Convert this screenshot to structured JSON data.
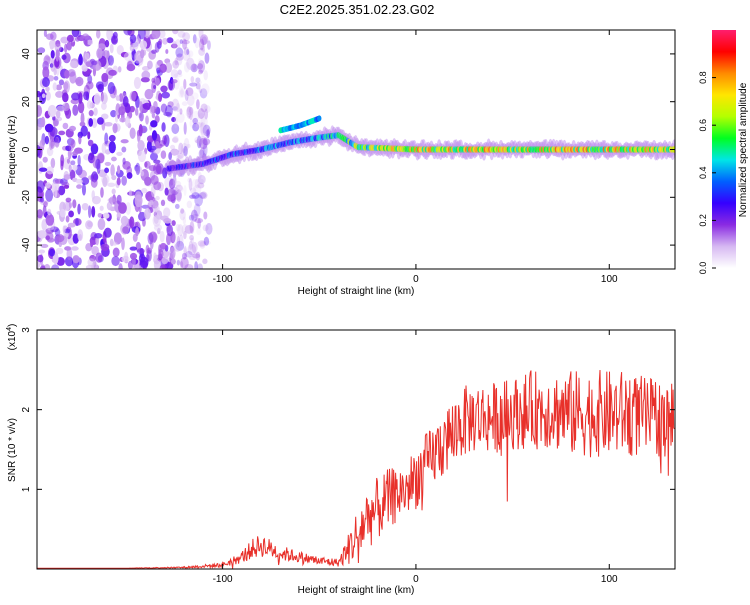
{
  "figure_title": "C2E2.2025.351.02.23.G02",
  "colors": {
    "snr_line": "#e8302a",
    "axis": "#000000",
    "background": "#ffffff"
  },
  "colorbar": {
    "label": "Normalized spectral amplitude",
    "range": [
      0.0,
      1.0
    ],
    "ticks": [
      "0.0",
      "0.2",
      "0.4",
      "0.6",
      "0.8"
    ],
    "tick_values": [
      0.0,
      0.2,
      0.4,
      0.6,
      0.8
    ],
    "colormap": [
      "#ffffff",
      "#d6b8f2",
      "#8a2be2",
      "#3500ff",
      "#0060ff",
      "#00e6e6",
      "#00ff20",
      "#b4ff00",
      "#ffe600",
      "#ff8a00",
      "#ff0000",
      "#ff1e6e"
    ]
  },
  "chart_data": [
    {
      "type": "heatmap",
      "name": "spectrogram",
      "xlabel": "Height of straight line (km)",
      "ylabel": "Frequency (Hz)",
      "xlim": [
        -196,
        134
      ],
      "ylim": [
        -50,
        50
      ],
      "xticks": [
        -100,
        0,
        100
      ],
      "xtick_labels": [
        "-100",
        "0",
        "100"
      ],
      "yticks": [
        -40,
        -20,
        0,
        20,
        40
      ],
      "ytick_labels": [
        "-40",
        "-20",
        "0",
        "20",
        "40"
      ],
      "noise_region_x": [
        -196,
        -115
      ],
      "signal_track": {
        "description_points_x": [
          -128,
          -110,
          -95,
          -80,
          -65,
          -50,
          -40,
          -30,
          0,
          50,
          100,
          134
        ],
        "frequency_hz": [
          -8,
          -6,
          -2,
          0,
          3,
          5,
          6,
          1,
          0,
          0,
          0,
          0
        ],
        "amplitude": [
          0.3,
          0.35,
          0.4,
          0.45,
          0.45,
          0.5,
          0.55,
          0.7,
          0.85,
          0.85,
          0.85,
          0.8
        ]
      },
      "secondary_track": {
        "x": [
          -70,
          -60,
          -50
        ],
        "frequency_hz": [
          8,
          10,
          13
        ]
      }
    },
    {
      "type": "line",
      "name": "snr",
      "xlabel": "Height of straight line (km)",
      "ylabel": "SNR (10 * v/v)",
      "y_multiplier_label": "(x10",
      "y_multiplier_exp": "4",
      "y_multiplier_close": ")",
      "xlim": [
        -196,
        134
      ],
      "ylim": [
        0,
        3
      ],
      "xticks": [
        -100,
        0,
        100
      ],
      "xtick_labels": [
        "-100",
        "0",
        "100"
      ],
      "yticks": [
        1,
        2,
        3
      ],
      "ytick_labels": [
        "1",
        "2",
        "3"
      ],
      "series": [
        {
          "name": "SNR",
          "x": [
            -196,
            -150,
            -120,
            -100,
            -90,
            -85,
            -80,
            -75,
            -70,
            -60,
            -50,
            -40,
            -35,
            -30,
            -25,
            -20,
            -15,
            -10,
            -5,
            0,
            5,
            10,
            15,
            20,
            25,
            30,
            40,
            50,
            60,
            70,
            80,
            90,
            100,
            110,
            120,
            134
          ],
          "baseline": [
            0.01,
            0.01,
            0.02,
            0.05,
            0.15,
            0.25,
            0.3,
            0.25,
            0.2,
            0.15,
            0.1,
            0.08,
            0.25,
            0.45,
            0.65,
            0.75,
            0.85,
            0.95,
            1.0,
            1.15,
            1.3,
            1.45,
            1.6,
            1.75,
            1.85,
            1.9,
            1.9,
            1.95,
            2.0,
            2.0,
            1.95,
            1.95,
            1.95,
            1.95,
            1.9,
            1.9
          ],
          "spread": [
            0.0,
            0.0,
            0.01,
            0.03,
            0.08,
            0.12,
            0.15,
            0.12,
            0.1,
            0.07,
            0.06,
            0.05,
            0.2,
            0.35,
            0.4,
            0.4,
            0.4,
            0.35,
            0.35,
            0.4,
            0.4,
            0.4,
            0.45,
            0.45,
            0.45,
            0.45,
            0.45,
            0.45,
            0.5,
            0.5,
            0.55,
            0.55,
            0.55,
            0.55,
            0.5,
            0.5
          ]
        }
      ]
    }
  ]
}
